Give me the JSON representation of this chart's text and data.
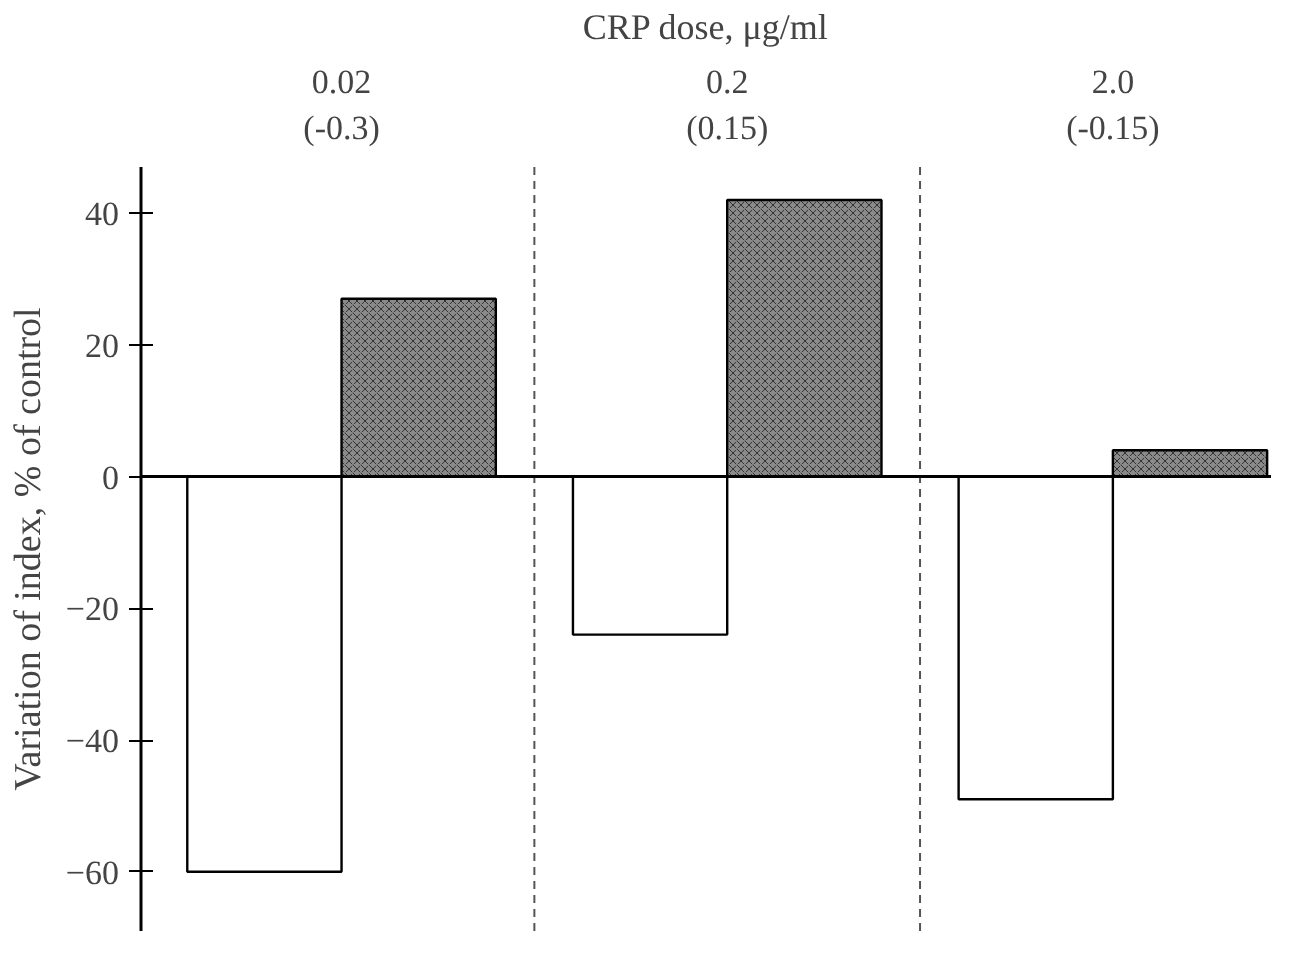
{
  "chart_data": {
    "type": "bar",
    "xlabel": "CRP dose, μg/ml",
    "ylabel": "Variation of index, % of control",
    "categories": [
      "0.02\n(-0.3)",
      "0.2\n(0.15)",
      "2.0\n(-0.15)"
    ],
    "series": [
      {
        "color": "#ffffff",
        "values": [
          -60,
          -24,
          -49
        ]
      },
      {
        "color": "#8a8a8a",
        "values": [
          27,
          42,
          4
        ]
      }
    ],
    "ylim": [
      -69,
      47
    ],
    "yticks": [
      -60,
      -40,
      -20,
      0,
      20,
      40
    ],
    "ref_lines": [
      {
        "axis": "y",
        "value": 0
      }
    ],
    "grid": false
  }
}
